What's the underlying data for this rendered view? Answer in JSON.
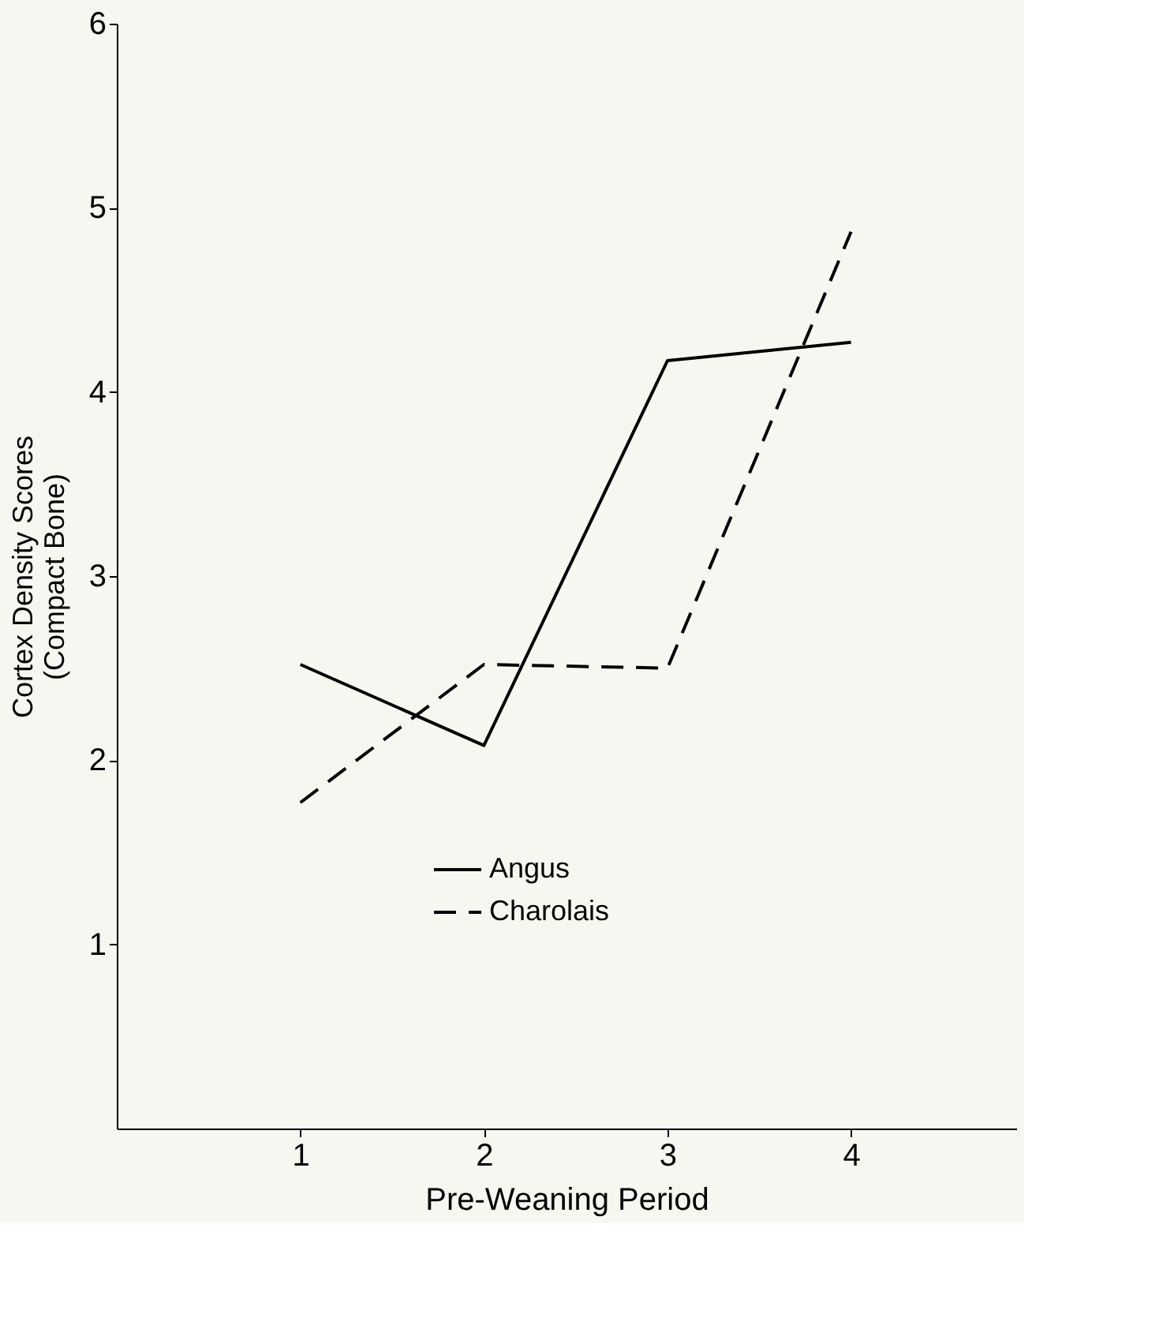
{
  "chart_data": {
    "type": "line",
    "xlabel": "Pre-Weaning Period",
    "ylabel": "Cortex Density Scores (Compact Bone)",
    "x": [
      1,
      2,
      3,
      4
    ],
    "xlim": [
      0,
      4.9
    ],
    "xticks": [
      1,
      2,
      3,
      4
    ],
    "ylim": [
      0,
      6
    ],
    "yticks": [
      1,
      2,
      3,
      4,
      5,
      6
    ],
    "grid": false,
    "legend": "bottom",
    "marker": "none",
    "series": [
      {
        "name": "Angus",
        "color": "#000000",
        "line_style": "solid",
        "values": [
          2.52,
          2.08,
          4.17,
          4.27
        ]
      },
      {
        "name": "Charolais",
        "color": "#000000",
        "line_style": "dashed",
        "values": [
          1.77,
          2.52,
          2.5,
          4.87
        ]
      }
    ]
  }
}
